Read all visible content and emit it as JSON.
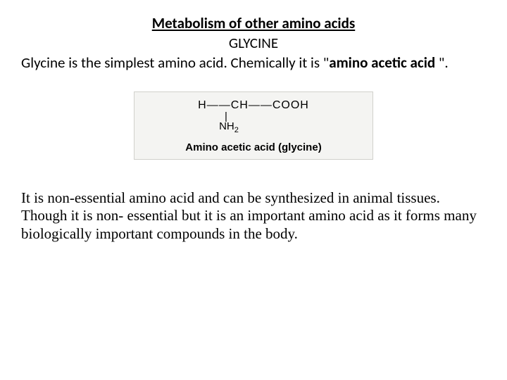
{
  "header": {
    "title": "Metabolism of other amino acids",
    "subtitle": "GLYCINE"
  },
  "intro": {
    "part1": "Glycine is the simplest  amino acid. Chemically it is \"",
    "bold1": "amino acetic acid",
    "part2": " \"."
  },
  "formula": {
    "line1": "H——CH——COOH",
    "bond": "|",
    "line3_prefix": "NH",
    "line3_sub": "2",
    "caption": "Amino acetic acid (glycine)",
    "background_color": "#f4f4f2",
    "border_color": "#d0d0cc",
    "text_color": "#000000"
  },
  "body": {
    "text": "It is non-essential amino acid and can be synthesized in animal tissues. Though it is non- essential but it is an important amino acid as it forms many biologically important compounds in the body."
  },
  "styling": {
    "page_background": "#ffffff",
    "title_fontsize": 21,
    "intro_fontsize": 21,
    "body_fontsize": 21,
    "formula_fontsize": 16,
    "caption_fontsize": 15
  }
}
